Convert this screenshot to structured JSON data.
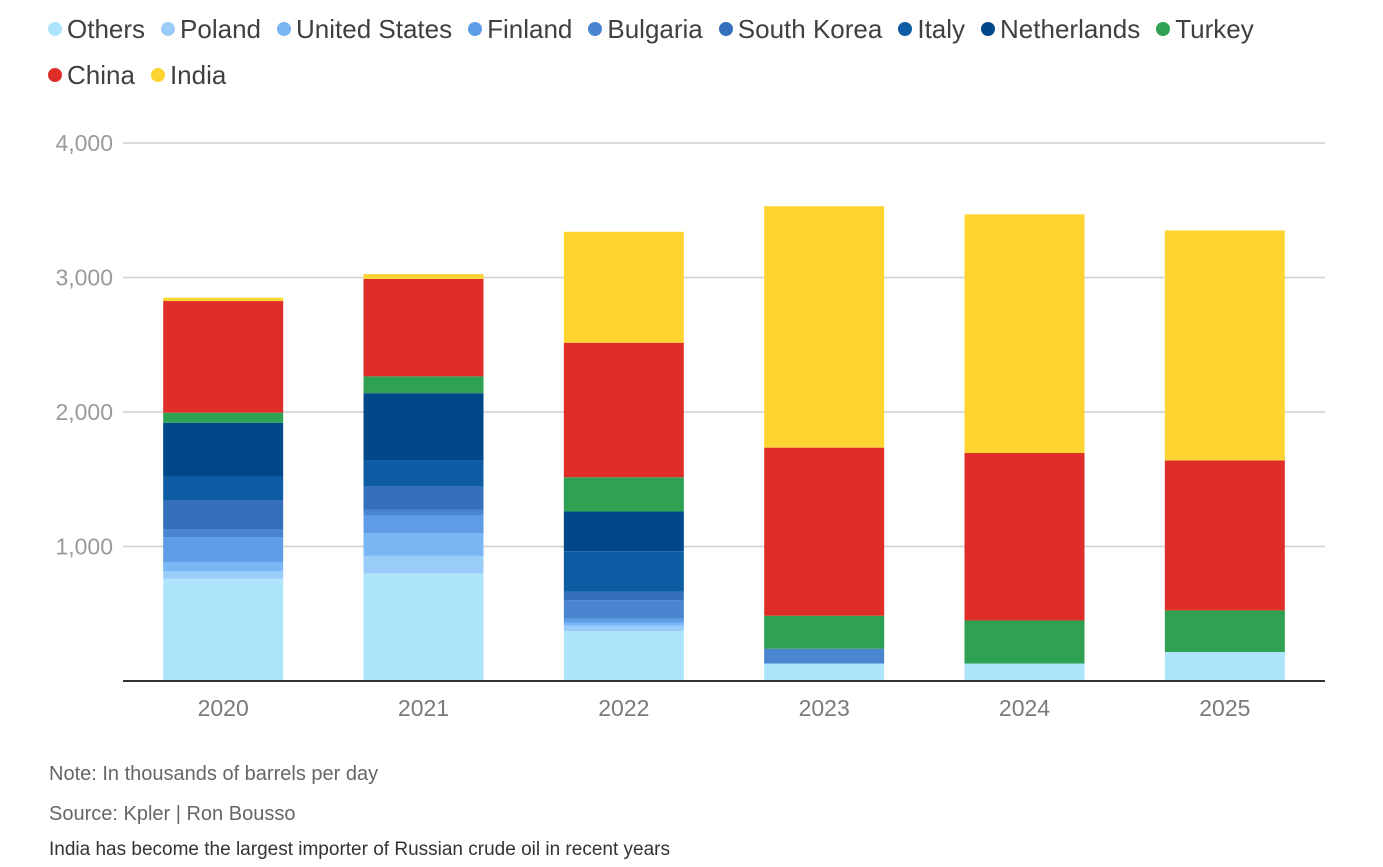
{
  "chart_data": {
    "type": "bar",
    "stacked": true,
    "title": "",
    "xlabel": "",
    "ylabel": "",
    "categories": [
      "2020",
      "2021",
      "2022",
      "2023",
      "2024",
      "2025"
    ],
    "ylim": [
      0,
      4000
    ],
    "yticks": [
      1000,
      2000,
      3000,
      4000
    ],
    "ytick_labels": [
      "1,000",
      "2,000",
      "3,000",
      "4,000"
    ],
    "grid": true,
    "legend_position": "top-left",
    "series": [
      {
        "name": "Others",
        "color": "#ade4fc",
        "values": [
          760,
          800,
          370,
          130,
          130,
          215
        ]
      },
      {
        "name": "Poland",
        "color": "#99ccf8",
        "values": [
          55,
          130,
          40,
          0,
          0,
          0
        ]
      },
      {
        "name": "United States",
        "color": "#7ab6f4",
        "values": [
          70,
          170,
          25,
          0,
          0,
          0
        ]
      },
      {
        "name": "Finland",
        "color": "#5e9ce6",
        "values": [
          185,
          130,
          30,
          0,
          0,
          0
        ]
      },
      {
        "name": "Bulgaria",
        "color": "#4a86d0",
        "values": [
          60,
          45,
          135,
          110,
          0,
          0
        ]
      },
      {
        "name": "South Korea",
        "color": "#3571ba",
        "values": [
          210,
          170,
          65,
          0,
          0,
          0
        ]
      },
      {
        "name": "Italy",
        "color": "#0e5ca4",
        "values": [
          180,
          195,
          300,
          0,
          0,
          0
        ]
      },
      {
        "name": "Netherlands",
        "color": "#00488a",
        "values": [
          400,
          500,
          295,
          0,
          0,
          0
        ]
      },
      {
        "name": "Turkey",
        "color": "#2fa152",
        "values": [
          75,
          125,
          255,
          245,
          320,
          310
        ]
      },
      {
        "name": "China",
        "color": "#df2e28",
        "values": [
          830,
          725,
          1000,
          1250,
          1245,
          1115
        ]
      },
      {
        "name": "India",
        "color": "#fed530",
        "values": [
          25,
          35,
          825,
          1795,
          1775,
          1710
        ]
      }
    ]
  },
  "legend": {
    "row1": [
      {
        "label": "Others",
        "color": "#ade4fc"
      },
      {
        "label": "Poland",
        "color": "#99ccf8"
      },
      {
        "label": "United States",
        "color": "#7ab6f4"
      },
      {
        "label": "Finland",
        "color": "#5e9ce6"
      },
      {
        "label": "Bulgaria",
        "color": "#4a86d0"
      },
      {
        "label": "South Korea",
        "color": "#3571ba"
      },
      {
        "label": "Italy",
        "color": "#0e5ca4"
      },
      {
        "label": "Netherlands",
        "color": "#00488a"
      },
      {
        "label": "Turkey",
        "color": "#2fa152"
      }
    ],
    "row2": [
      {
        "label": "China",
        "color": "#df2e28"
      },
      {
        "label": "India",
        "color": "#fed530"
      }
    ]
  },
  "footer": {
    "note": "Note: In thousands of barrels per day",
    "source": "Source: Kpler | Ron Bousso",
    "caption": "India has become the largest importer of Russian crude oil in recent years"
  }
}
